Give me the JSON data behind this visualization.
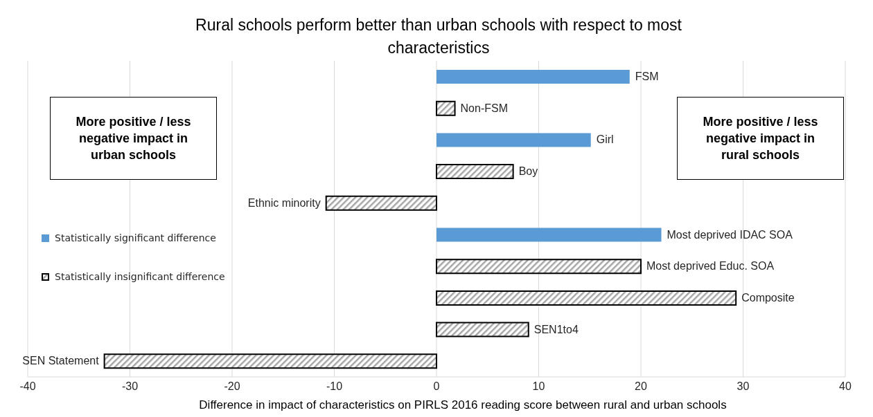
{
  "chart_data": {
    "type": "bar",
    "orientation": "horizontal",
    "stacked": true,
    "title": "Rural schools perform better than urban schools with respect to most characteristics",
    "xlabel": "Difference in impact of characteristics on PIRLS 2016 reading score between rural and urban schools",
    "categories": [
      "FSM",
      "Non-FSM",
      "Girl",
      "Boy",
      "Ethnic minority",
      "Most deprived IDAC SOA",
      "Most deprived Educ. SOA",
      "Composite",
      "SEN1to4",
      "SEN Statement"
    ],
    "series": [
      {
        "name": "Statistically significant difference",
        "color": "#5b9bd5",
        "values": [
          18.9,
          null,
          15.1,
          null,
          null,
          22.0,
          null,
          null,
          null,
          null
        ]
      },
      {
        "name": "Statistically insignificant difference",
        "color": "#000000",
        "values": [
          null,
          1.8,
          null,
          7.5,
          -10.8,
          null,
          20.0,
          29.3,
          9.0,
          -32.5
        ]
      }
    ],
    "xlim": [
      -40,
      40
    ],
    "xticks": [
      -40,
      -30,
      -20,
      -10,
      0,
      10,
      20,
      30,
      40
    ],
    "grid": "x",
    "legend": "left",
    "annotations": [
      "More positive / less negative impact in urban schools",
      "More positive / less negative impact in rural schools"
    ]
  }
}
